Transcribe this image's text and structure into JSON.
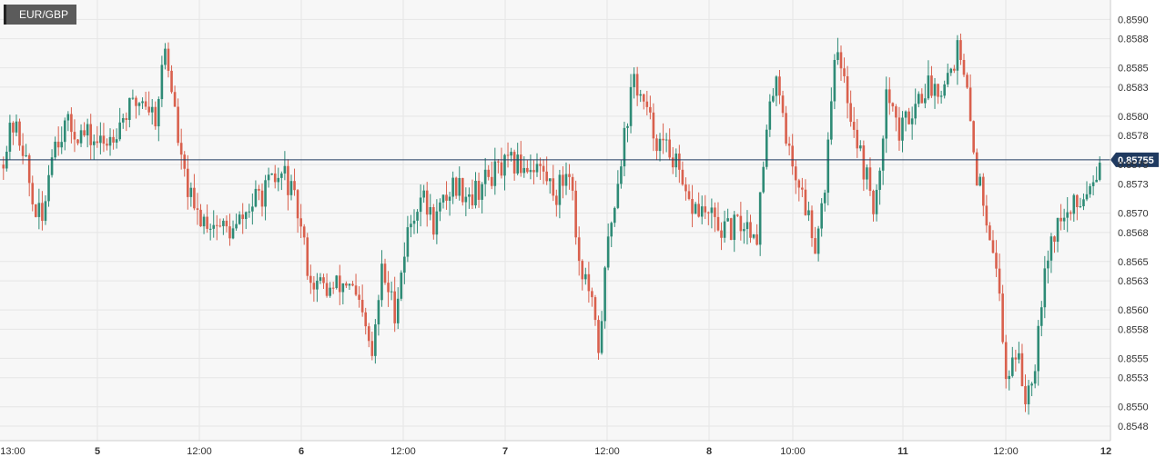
{
  "symbol": "EUR/GBP",
  "current_price_label": "0.85755",
  "colors": {
    "up": "#2e8b76",
    "down": "#d9604d",
    "grid": "#e6e6e6",
    "plot_bg": "#f7f7f7",
    "price_line": "#1f3a60",
    "price_tag_bg": "#1f3a60",
    "axis_text": "#333333"
  },
  "chart_data": {
    "type": "candlestick",
    "title": "EUR/GBP",
    "ylim": [
      0.85465,
      0.8592
    ],
    "y_ticks": [
      "0.8590",
      "0.8588",
      "0.8585",
      "0.8583",
      "0.8580",
      "0.8578",
      "0.8575",
      "0.8573",
      "0.8570",
      "0.8568",
      "0.8565",
      "0.8563",
      "0.8560",
      "0.8558",
      "0.8555",
      "0.8553",
      "0.8550",
      "0.8548"
    ],
    "x_ticks": [
      {
        "label": "13:00",
        "bold": false
      },
      {
        "label": "5",
        "bold": true
      },
      {
        "label": "12:00",
        "bold": false
      },
      {
        "label": "6",
        "bold": true
      },
      {
        "label": "12:00",
        "bold": false
      },
      {
        "label": "7",
        "bold": true
      },
      {
        "label": "12:00",
        "bold": false
      },
      {
        "label": "8",
        "bold": true
      },
      {
        "label": "10:00",
        "bold": false
      },
      {
        "label": "11",
        "bold": true
      },
      {
        "label": "12:00",
        "bold": false
      },
      {
        "label": "12",
        "bold": true
      }
    ],
    "current_price": 0.85755,
    "candle_count": 340,
    "close_path": [
      {
        "t": 0,
        "v": 0.8575
      },
      {
        "t": 4,
        "v": 0.8579
      },
      {
        "t": 7,
        "v": 0.8577
      },
      {
        "t": 10,
        "v": 0.8571
      },
      {
        "t": 13,
        "v": 0.8569
      },
      {
        "t": 16,
        "v": 0.8577
      },
      {
        "t": 20,
        "v": 0.8579
      },
      {
        "t": 26,
        "v": 0.8578
      },
      {
        "t": 32,
        "v": 0.8577
      },
      {
        "t": 38,
        "v": 0.858
      },
      {
        "t": 44,
        "v": 0.8582
      },
      {
        "t": 48,
        "v": 0.858
      },
      {
        "t": 51,
        "v": 0.8587
      },
      {
        "t": 53,
        "v": 0.8583
      },
      {
        "t": 56,
        "v": 0.8575
      },
      {
        "t": 60,
        "v": 0.857
      },
      {
        "t": 66,
        "v": 0.8569
      },
      {
        "t": 72,
        "v": 0.8568
      },
      {
        "t": 78,
        "v": 0.8571
      },
      {
        "t": 84,
        "v": 0.8573
      },
      {
        "t": 88,
        "v": 0.8574
      },
      {
        "t": 92,
        "v": 0.857
      },
      {
        "t": 96,
        "v": 0.8563
      },
      {
        "t": 102,
        "v": 0.8562
      },
      {
        "t": 108,
        "v": 0.8563
      },
      {
        "t": 112,
        "v": 0.8559
      },
      {
        "t": 115,
        "v": 0.8555
      },
      {
        "t": 118,
        "v": 0.8564
      },
      {
        "t": 122,
        "v": 0.856
      },
      {
        "t": 126,
        "v": 0.8568
      },
      {
        "t": 130,
        "v": 0.8572
      },
      {
        "t": 134,
        "v": 0.8569
      },
      {
        "t": 140,
        "v": 0.8573
      },
      {
        "t": 146,
        "v": 0.8572
      },
      {
        "t": 152,
        "v": 0.8574
      },
      {
        "t": 158,
        "v": 0.8575
      },
      {
        "t": 166,
        "v": 0.8575
      },
      {
        "t": 172,
        "v": 0.8572
      },
      {
        "t": 176,
        "v": 0.8575
      },
      {
        "t": 179,
        "v": 0.8565
      },
      {
        "t": 182,
        "v": 0.8562
      },
      {
        "t": 185,
        "v": 0.8556
      },
      {
        "t": 188,
        "v": 0.8567
      },
      {
        "t": 192,
        "v": 0.8576
      },
      {
        "t": 196,
        "v": 0.8584
      },
      {
        "t": 200,
        "v": 0.858
      },
      {
        "t": 204,
        "v": 0.8577
      },
      {
        "t": 208,
        "v": 0.8576
      },
      {
        "t": 212,
        "v": 0.8571
      },
      {
        "t": 218,
        "v": 0.857
      },
      {
        "t": 224,
        "v": 0.8568
      },
      {
        "t": 230,
        "v": 0.8569
      },
      {
        "t": 234,
        "v": 0.8568
      },
      {
        "t": 237,
        "v": 0.8578
      },
      {
        "t": 240,
        "v": 0.8585
      },
      {
        "t": 244,
        "v": 0.8576
      },
      {
        "t": 248,
        "v": 0.8572
      },
      {
        "t": 252,
        "v": 0.8567
      },
      {
        "t": 255,
        "v": 0.8573
      },
      {
        "t": 258,
        "v": 0.8587
      },
      {
        "t": 262,
        "v": 0.8582
      },
      {
        "t": 266,
        "v": 0.8576
      },
      {
        "t": 270,
        "v": 0.8571
      },
      {
        "t": 272,
        "v": 0.8573
      },
      {
        "t": 274,
        "v": 0.8584
      },
      {
        "t": 278,
        "v": 0.8578
      },
      {
        "t": 282,
        "v": 0.8581
      },
      {
        "t": 286,
        "v": 0.8583
      },
      {
        "t": 290,
        "v": 0.8583
      },
      {
        "t": 294,
        "v": 0.8585
      },
      {
        "t": 296,
        "v": 0.8587
      },
      {
        "t": 299,
        "v": 0.8582
      },
      {
        "t": 302,
        "v": 0.8574
      },
      {
        "t": 305,
        "v": 0.857
      },
      {
        "t": 308,
        "v": 0.8565
      },
      {
        "t": 311,
        "v": 0.8553
      },
      {
        "t": 314,
        "v": 0.8556
      },
      {
        "t": 317,
        "v": 0.8551
      },
      {
        "t": 320,
        "v": 0.8555
      },
      {
        "t": 323,
        "v": 0.8565
      },
      {
        "t": 327,
        "v": 0.8569
      },
      {
        "t": 331,
        "v": 0.857
      },
      {
        "t": 335,
        "v": 0.8572
      },
      {
        "t": 338,
        "v": 0.8574
      },
      {
        "t": 340,
        "v": 0.85755
      }
    ]
  }
}
